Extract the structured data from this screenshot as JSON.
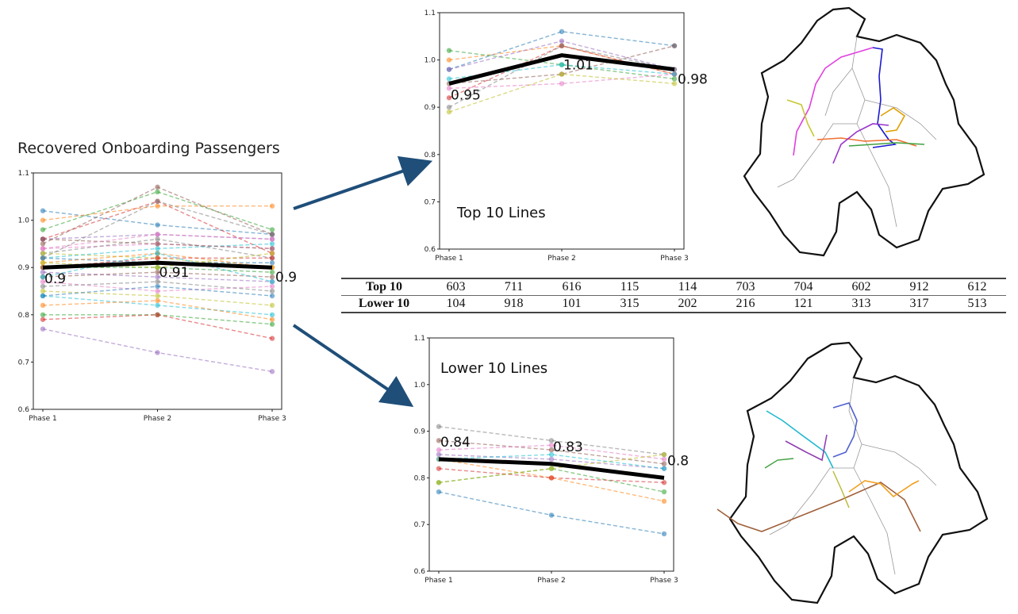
{
  "main_title": "Recovered Onboarding Passengers",
  "colors": {
    "mean": "#000000",
    "arrow": "#1f4e79",
    "palette": [
      "#1f77b4",
      "#ff7f0e",
      "#2ca02c",
      "#d62728",
      "#9467bd",
      "#8c564b",
      "#e377c2",
      "#7f7f7f",
      "#bcbd22",
      "#17becf"
    ]
  },
  "chart_data": [
    {
      "id": "all-lines",
      "type": "line",
      "title": "Recovered Onboarding Passengers",
      "categories": [
        "Phase 1",
        "Phase 2",
        "Phase 3"
      ],
      "ylim": [
        0.6,
        1.1
      ],
      "yticks": [
        "0.6",
        "0.7",
        "0.8",
        "0.9",
        "1.0",
        "1.1"
      ],
      "mean": {
        "name": "Mean",
        "values": [
          0.9,
          0.91,
          0.9
        ],
        "labels": [
          "0.9",
          "0.91",
          "0.9"
        ]
      },
      "series": [
        {
          "values": [
            1.02,
            0.99,
            0.97
          ]
        },
        {
          "values": [
            1.0,
            1.03,
            1.03
          ]
        },
        {
          "values": [
            0.98,
            1.06,
            0.98
          ]
        },
        {
          "values": [
            0.96,
            1.04,
            0.93
          ]
        },
        {
          "values": [
            0.96,
            0.97,
            0.96
          ]
        },
        {
          "values": [
            0.95,
            1.07,
            0.97
          ]
        },
        {
          "values": [
            0.94,
            0.95,
            0.94
          ]
        },
        {
          "values": [
            0.93,
            0.96,
            0.92
          ]
        },
        {
          "values": [
            0.93,
            0.92,
            0.9
          ]
        },
        {
          "values": [
            0.92,
            0.94,
            0.95
          ]
        },
        {
          "values": [
            0.92,
            0.91,
            0.91
          ]
        },
        {
          "values": [
            0.91,
            0.93,
            0.9
          ]
        },
        {
          "values": [
            0.9,
            0.9,
            0.89
          ]
        },
        {
          "values": [
            0.9,
            0.92,
            0.92
          ]
        },
        {
          "values": [
            0.89,
            0.88,
            0.87
          ]
        },
        {
          "values": [
            0.88,
            0.89,
            0.88
          ]
        },
        {
          "values": [
            0.87,
            0.85,
            0.86
          ]
        },
        {
          "values": [
            0.86,
            0.87,
            0.85
          ]
        },
        {
          "values": [
            0.85,
            0.84,
            0.82
          ]
        },
        {
          "values": [
            0.84,
            0.82,
            0.8
          ]
        },
        {
          "values": [
            0.84,
            0.86,
            0.84
          ]
        },
        {
          "values": [
            0.82,
            0.83,
            0.79
          ]
        },
        {
          "values": [
            0.8,
            0.8,
            0.78
          ]
        },
        {
          "values": [
            0.79,
            0.8,
            0.75
          ]
        },
        {
          "values": [
            0.77,
            0.72,
            0.68
          ]
        },
        {
          "values": [
            0.96,
            0.95,
            0.94
          ]
        },
        {
          "values": [
            0.94,
            0.97,
            0.96
          ]
        },
        {
          "values": [
            0.92,
            1.04,
            0.97
          ]
        },
        {
          "values": [
            0.91,
            0.9,
            0.93
          ]
        },
        {
          "values": [
            0.88,
            0.93,
            0.87
          ]
        }
      ]
    },
    {
      "id": "top10",
      "type": "line",
      "title": "Top 10 Lines",
      "categories": [
        "Phase 1",
        "Phase 2",
        "Phase 3"
      ],
      "ylim": [
        0.6,
        1.1
      ],
      "yticks": [
        "0.6",
        "0.7",
        "0.8",
        "0.9",
        "1.0",
        "1.1"
      ],
      "mean": {
        "name": "Mean",
        "values": [
          0.95,
          1.01,
          0.98
        ],
        "labels": [
          "0.95",
          "1.01",
          "0.98"
        ]
      },
      "series": [
        {
          "values": [
            0.98,
            1.06,
            1.03
          ]
        },
        {
          "values": [
            1.0,
            1.03,
            0.97
          ]
        },
        {
          "values": [
            1.02,
            0.99,
            0.96
          ]
        },
        {
          "values": [
            0.92,
            1.03,
            0.97
          ]
        },
        {
          "values": [
            0.98,
            1.04,
            0.98
          ]
        },
        {
          "values": [
            0.95,
            0.97,
            1.03
          ]
        },
        {
          "values": [
            0.94,
            0.95,
            0.97
          ]
        },
        {
          "values": [
            0.9,
            1.03,
            0.98
          ]
        },
        {
          "values": [
            0.89,
            0.97,
            0.95
          ]
        },
        {
          "values": [
            0.96,
            0.99,
            0.97
          ]
        }
      ]
    },
    {
      "id": "lower10",
      "type": "line",
      "title": "Lower 10 Lines",
      "categories": [
        "Phase 1",
        "Phase 2",
        "Phase 3"
      ],
      "ylim": [
        0.6,
        1.1
      ],
      "yticks": [
        "0.6",
        "0.7",
        "0.8",
        "0.9",
        "1.0",
        "1.1"
      ],
      "mean": {
        "name": "Mean",
        "values": [
          0.84,
          0.83,
          0.8
        ],
        "labels": [
          "0.84",
          "0.83",
          "0.8"
        ]
      },
      "series": [
        {
          "values": [
            0.77,
            0.72,
            0.68
          ]
        },
        {
          "values": [
            0.84,
            0.8,
            0.75
          ]
        },
        {
          "values": [
            0.79,
            0.82,
            0.77
          ]
        },
        {
          "values": [
            0.82,
            0.8,
            0.79
          ]
        },
        {
          "values": [
            0.85,
            0.84,
            0.82
          ]
        },
        {
          "values": [
            0.88,
            0.86,
            0.83
          ]
        },
        {
          "values": [
            0.86,
            0.87,
            0.84
          ]
        },
        {
          "values": [
            0.91,
            0.88,
            0.85
          ]
        },
        {
          "values": [
            0.79,
            0.82,
            0.85
          ]
        },
        {
          "values": [
            0.84,
            0.85,
            0.82
          ]
        }
      ]
    }
  ],
  "table": {
    "rows": [
      {
        "label": "Top 10",
        "values": [
          "603",
          "711",
          "616",
          "115",
          "114",
          "703",
          "704",
          "602",
          "912",
          "612"
        ]
      },
      {
        "label": "Lower 10",
        "values": [
          "104",
          "918",
          "101",
          "315",
          "202",
          "216",
          "121",
          "313",
          "317",
          "513"
        ]
      }
    ]
  }
}
